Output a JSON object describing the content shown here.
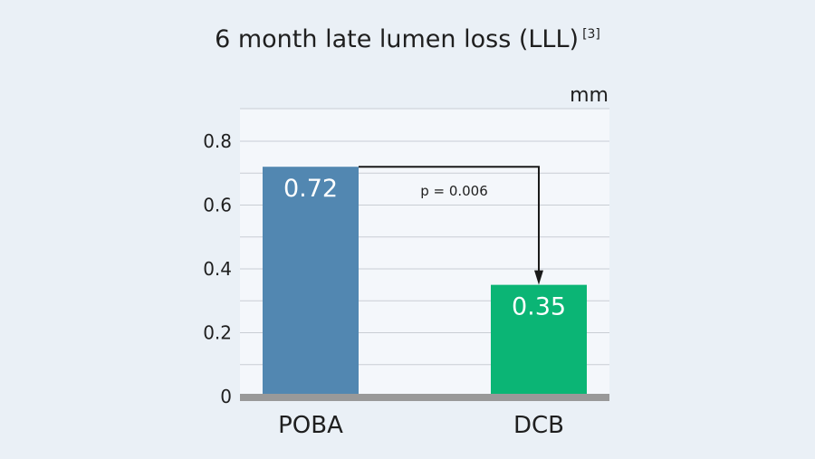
{
  "chart_data": {
    "type": "bar",
    "title": "6 month late lumen loss (LLL)",
    "title_reference": "[3]",
    "unit": "mm",
    "categories": [
      "POBA",
      "DCB"
    ],
    "values": [
      0.72,
      0.35
    ],
    "data_labels": [
      "0.72",
      "0.35"
    ],
    "colors": [
      "#5287b1",
      "#0bb575"
    ],
    "ylim": [
      0,
      0.8
    ],
    "y_ticks": [
      "0",
      "0.2",
      "0.4",
      "0.6",
      "0.8"
    ],
    "grid": true,
    "annotation": {
      "text": "p = 0.006",
      "from_category": "POBA",
      "to_category": "DCB"
    }
  },
  "colors": {
    "background": "#eaf0f6",
    "plot_background": "#f4f7fb",
    "gridline": "#c9ced4",
    "baseline": "#999999",
    "arrow": "#1a1a1a"
  }
}
